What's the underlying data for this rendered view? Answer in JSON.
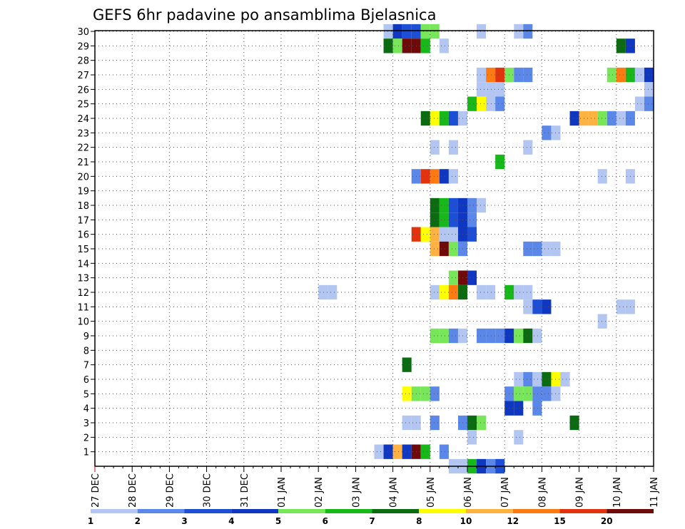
{
  "chart_data": {
    "type": "heatmap",
    "title": "GEFS 6hr padavine po ansamblima Bjelasnica",
    "xlabel": "",
    "ylabel": "",
    "x_tick_labels": [
      "27 DEC",
      "28 DEC",
      "29 DEC",
      "30 DEC",
      "31 DEC",
      "01 JAN",
      "02 JAN",
      "03 JAN",
      "04 JAN",
      "05 JAN",
      "06 JAN",
      "07 JAN",
      "08 JAN",
      "09 JAN",
      "10 JAN",
      "11 JAN"
    ],
    "y_tick_labels": [
      "1",
      "2",
      "3",
      "4",
      "5",
      "6",
      "7",
      "8",
      "9",
      "10",
      "11",
      "12",
      "13",
      "14",
      "15",
      "16",
      "17",
      "18",
      "19",
      "20",
      "21",
      "22",
      "23",
      "24",
      "25",
      "26",
      "27",
      "28",
      "29",
      "30"
    ],
    "xlim_days": [
      0,
      15
    ],
    "ylim": [
      0,
      30
    ],
    "step_hours": 6,
    "grid": true,
    "colorbar": {
      "labels": [
        "1",
        "2",
        "3",
        "4",
        "5",
        "6",
        "7",
        "8",
        "10",
        "12",
        "15",
        "20"
      ],
      "colors": [
        "#b3c6f2",
        "#5b87e8",
        "#1c4fd6",
        "#0f37c0",
        "#77e659",
        "#18b81b",
        "#0a6b10",
        "#ffff00",
        "#ffb240",
        "#ff7a10",
        "#e1340e",
        "#6e0a0a"
      ]
    },
    "series": [
      {
        "y": 30,
        "cells": [
          [
            7.75,
            0
          ],
          [
            8.0,
            3
          ],
          [
            8.25,
            2
          ],
          [
            8.5,
            2
          ],
          [
            8.75,
            4
          ],
          [
            9.0,
            4
          ],
          [
            10.25,
            0
          ],
          [
            11.25,
            0
          ],
          [
            11.5,
            1
          ]
        ]
      },
      {
        "y": 29,
        "cells": [
          [
            7.75,
            6
          ],
          [
            8.0,
            4
          ],
          [
            8.25,
            11
          ],
          [
            8.5,
            11
          ],
          [
            8.75,
            5
          ],
          [
            9.25,
            0
          ],
          [
            14.0,
            6
          ],
          [
            14.25,
            3
          ]
        ]
      },
      {
        "y": 27,
        "cells": [
          [
            10.25,
            0
          ],
          [
            10.5,
            9
          ],
          [
            10.75,
            10
          ],
          [
            11.0,
            4
          ],
          [
            11.25,
            1
          ],
          [
            11.5,
            1
          ],
          [
            13.75,
            4
          ],
          [
            14.0,
            9
          ],
          [
            14.25,
            5
          ],
          [
            14.5,
            0
          ],
          [
            14.75,
            3
          ]
        ]
      },
      {
        "y": 26,
        "cells": [
          [
            10.25,
            0
          ],
          [
            10.5,
            0
          ],
          [
            10.75,
            0
          ],
          [
            14.75,
            0
          ]
        ]
      },
      {
        "y": 25,
        "cells": [
          [
            10.0,
            5
          ],
          [
            10.25,
            7
          ],
          [
            10.5,
            0
          ],
          [
            10.75,
            1
          ],
          [
            14.5,
            0
          ],
          [
            14.75,
            1
          ]
        ]
      },
      {
        "y": 24,
        "cells": [
          [
            8.75,
            6
          ],
          [
            9.0,
            7
          ],
          [
            9.25,
            5
          ],
          [
            9.5,
            2
          ],
          [
            9.75,
            0
          ],
          [
            12.75,
            3
          ],
          [
            13.0,
            8
          ],
          [
            13.25,
            8
          ],
          [
            13.5,
            4
          ],
          [
            13.75,
            1
          ],
          [
            14.0,
            0
          ],
          [
            14.25,
            1
          ]
        ]
      },
      {
        "y": 23,
        "cells": [
          [
            12.0,
            1
          ],
          [
            12.25,
            0
          ]
        ]
      },
      {
        "y": 22,
        "cells": [
          [
            9.0,
            0
          ],
          [
            9.5,
            0
          ],
          [
            11.5,
            0
          ]
        ]
      },
      {
        "y": 21,
        "cells": [
          [
            10.75,
            5
          ]
        ]
      },
      {
        "y": 20,
        "cells": [
          [
            8.5,
            1
          ],
          [
            8.75,
            10
          ],
          [
            9.0,
            9
          ],
          [
            9.25,
            3
          ],
          [
            9.5,
            0
          ],
          [
            13.5,
            0
          ],
          [
            14.25,
            0
          ]
        ]
      },
      {
        "y": 18,
        "cells": [
          [
            9.0,
            6
          ],
          [
            9.25,
            5
          ],
          [
            9.5,
            2
          ],
          [
            9.75,
            3
          ],
          [
            10.0,
            1
          ],
          [
            10.25,
            0
          ]
        ]
      },
      {
        "y": 17,
        "cells": [
          [
            9.0,
            6
          ],
          [
            9.25,
            5
          ],
          [
            9.5,
            2
          ],
          [
            9.75,
            3
          ],
          [
            10.0,
            1
          ]
        ]
      },
      {
        "y": 16,
        "cells": [
          [
            8.5,
            10
          ],
          [
            8.75,
            7
          ],
          [
            9.0,
            8
          ],
          [
            9.25,
            0
          ],
          [
            9.5,
            0
          ],
          [
            9.75,
            3
          ],
          [
            10.0,
            2
          ]
        ]
      },
      {
        "y": 15,
        "cells": [
          [
            9.0,
            8
          ],
          [
            9.25,
            11
          ],
          [
            9.5,
            4
          ],
          [
            9.75,
            1
          ],
          [
            11.5,
            1
          ],
          [
            11.75,
            1
          ],
          [
            12.0,
            0
          ],
          [
            12.25,
            0
          ]
        ]
      },
      {
        "y": 13,
        "cells": [
          [
            9.5,
            4
          ],
          [
            9.75,
            11
          ],
          [
            10.0,
            3
          ]
        ]
      },
      {
        "y": 12,
        "cells": [
          [
            6.0,
            0
          ],
          [
            6.25,
            0
          ],
          [
            9.0,
            0
          ],
          [
            9.25,
            7
          ],
          [
            9.5,
            9
          ],
          [
            9.75,
            6
          ],
          [
            10.25,
            0
          ],
          [
            10.5,
            0
          ],
          [
            11.0,
            5
          ],
          [
            11.25,
            0
          ],
          [
            11.5,
            0
          ]
        ]
      },
      {
        "y": 11,
        "cells": [
          [
            11.5,
            0
          ],
          [
            11.75,
            2
          ],
          [
            12.0,
            3
          ],
          [
            14.0,
            0
          ],
          [
            14.25,
            0
          ]
        ]
      },
      {
        "y": 10,
        "cells": [
          [
            13.5,
            0
          ]
        ]
      },
      {
        "y": 9,
        "cells": [
          [
            9.0,
            4
          ],
          [
            9.25,
            4
          ],
          [
            9.5,
            1
          ],
          [
            9.75,
            0
          ],
          [
            10.25,
            1
          ],
          [
            10.5,
            1
          ],
          [
            10.75,
            1
          ],
          [
            11.0,
            3
          ],
          [
            11.25,
            4
          ],
          [
            11.5,
            6
          ],
          [
            11.75,
            0
          ]
        ]
      },
      {
        "y": 7,
        "cells": [
          [
            8.25,
            6
          ]
        ]
      },
      {
        "y": 6,
        "cells": [
          [
            11.25,
            0
          ],
          [
            11.5,
            1
          ],
          [
            11.75,
            0
          ],
          [
            12.0,
            6
          ],
          [
            12.25,
            7
          ],
          [
            12.5,
            0
          ]
        ]
      },
      {
        "y": 5,
        "cells": [
          [
            8.25,
            7
          ],
          [
            8.5,
            4
          ],
          [
            8.75,
            4
          ],
          [
            9.0,
            1
          ],
          [
            11.0,
            1
          ],
          [
            11.25,
            4
          ],
          [
            11.5,
            4
          ],
          [
            11.75,
            1
          ],
          [
            12.0,
            1
          ],
          [
            12.25,
            0
          ]
        ]
      },
      {
        "y": 4,
        "cells": [
          [
            11.0,
            3
          ],
          [
            11.25,
            3
          ],
          [
            11.75,
            1
          ]
        ]
      },
      {
        "y": 3,
        "cells": [
          [
            8.25,
            0
          ],
          [
            8.5,
            0
          ],
          [
            9.0,
            1
          ],
          [
            9.75,
            1
          ],
          [
            10.0,
            6
          ],
          [
            10.25,
            4
          ],
          [
            12.75,
            6
          ]
        ]
      },
      {
        "y": 2,
        "cells": [
          [
            10.0,
            0
          ],
          [
            11.25,
            0
          ]
        ]
      },
      {
        "y": 1,
        "cells": [
          [
            7.5,
            0
          ],
          [
            7.75,
            3
          ],
          [
            8.0,
            8
          ],
          [
            8.25,
            3
          ],
          [
            8.5,
            11
          ],
          [
            8.75,
            5
          ],
          [
            9.25,
            1
          ]
        ]
      },
      {
        "y": 0,
        "cells": [
          [
            9.5,
            0
          ],
          [
            9.75,
            0
          ],
          [
            10.0,
            5
          ],
          [
            10.25,
            3
          ],
          [
            10.5,
            1
          ],
          [
            10.75,
            2
          ]
        ]
      }
    ]
  }
}
